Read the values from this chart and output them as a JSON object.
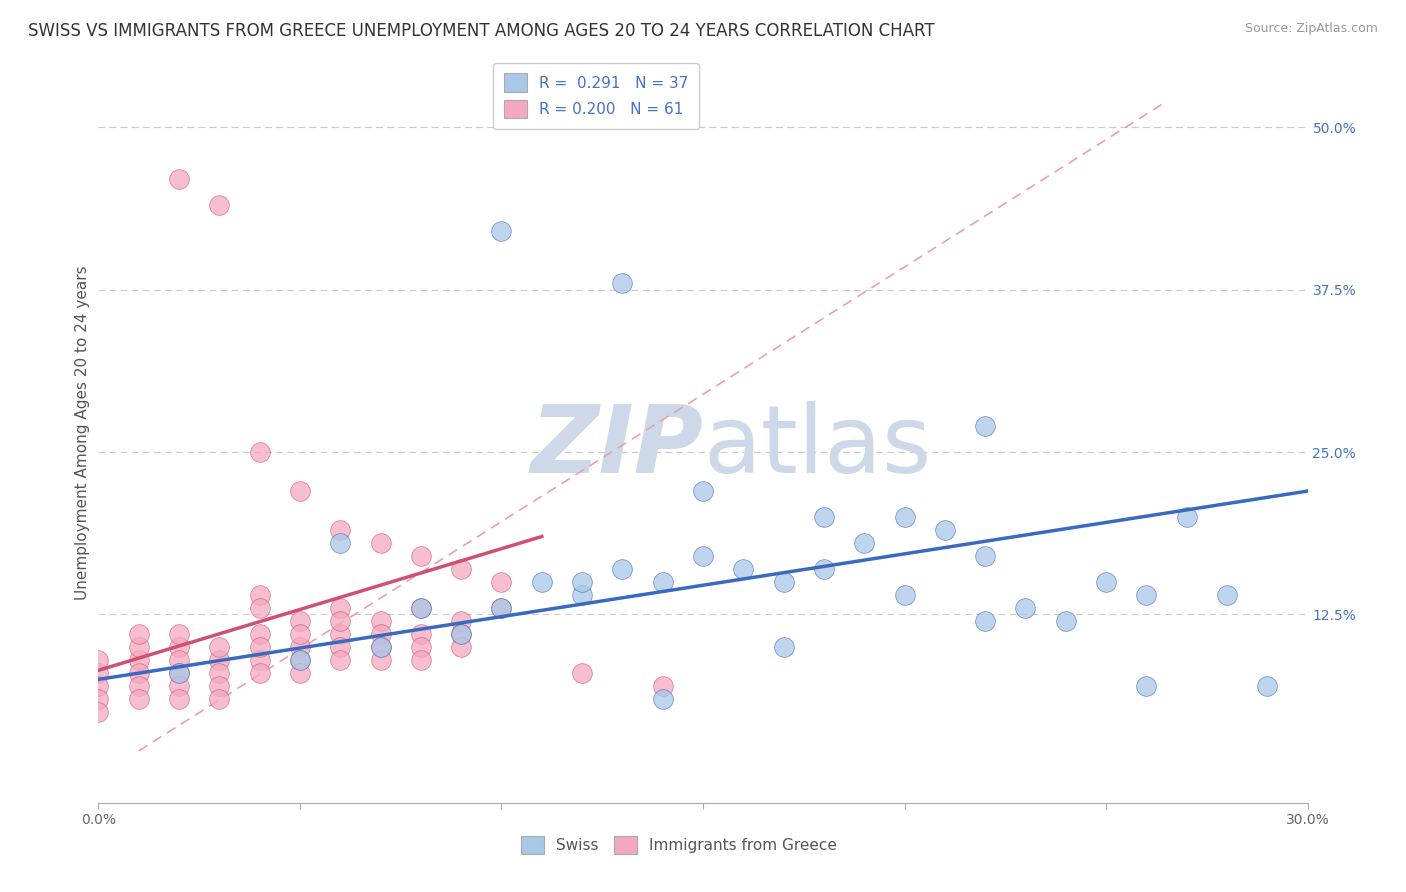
{
  "title": "SWISS VS IMMIGRANTS FROM GREECE UNEMPLOYMENT AMONG AGES 20 TO 24 YEARS CORRELATION CHART",
  "source": "Source: ZipAtlas.com",
  "ylabel": "Unemployment Among Ages 20 to 24 years",
  "xlim": [
    0.0,
    0.3
  ],
  "ylim": [
    -0.02,
    0.55
  ],
  "yticks_right": [
    0.125,
    0.25,
    0.375,
    0.5
  ],
  "yticklabels_right": [
    "12.5%",
    "25.0%",
    "37.5%",
    "50.0%"
  ],
  "legend_r_swiss": "0.291",
  "legend_n_swiss": "37",
  "legend_r_greece": "0.200",
  "legend_n_greece": "61",
  "swiss_color": "#a8c8e8",
  "greece_color": "#f4a8be",
  "swiss_line_color": "#3a6abf",
  "greece_line_color": "#d05070",
  "dash_line_color": "#e8a0b0",
  "background_color": "#ffffff",
  "watermark_color": "#cdd8e8",
  "title_fontsize": 12,
  "axis_label_fontsize": 11,
  "tick_fontsize": 10,
  "legend_fontsize": 11,
  "swiss_x": [
    0.02,
    0.05,
    0.07,
    0.09,
    0.1,
    0.11,
    0.12,
    0.13,
    0.14,
    0.15,
    0.16,
    0.17,
    0.18,
    0.19,
    0.2,
    0.21,
    0.22,
    0.23,
    0.24,
    0.25,
    0.26,
    0.27,
    0.28,
    0.1,
    0.13,
    0.15,
    0.18,
    0.2,
    0.22,
    0.06,
    0.08,
    0.12,
    0.17,
    0.22,
    0.26,
    0.29,
    0.14
  ],
  "swiss_y": [
    0.08,
    0.09,
    0.1,
    0.11,
    0.13,
    0.15,
    0.14,
    0.16,
    0.15,
    0.17,
    0.16,
    0.15,
    0.16,
    0.18,
    0.2,
    0.19,
    0.17,
    0.13,
    0.12,
    0.15,
    0.14,
    0.2,
    0.14,
    0.42,
    0.38,
    0.22,
    0.2,
    0.14,
    0.27,
    0.18,
    0.13,
    0.15,
    0.1,
    0.12,
    0.07,
    0.07,
    0.06
  ],
  "greece_x": [
    0.0,
    0.0,
    0.0,
    0.0,
    0.0,
    0.01,
    0.01,
    0.01,
    0.01,
    0.01,
    0.01,
    0.02,
    0.02,
    0.02,
    0.02,
    0.02,
    0.02,
    0.02,
    0.03,
    0.03,
    0.03,
    0.03,
    0.03,
    0.03,
    0.04,
    0.04,
    0.04,
    0.04,
    0.04,
    0.04,
    0.04,
    0.05,
    0.05,
    0.05,
    0.05,
    0.05,
    0.05,
    0.06,
    0.06,
    0.06,
    0.06,
    0.06,
    0.06,
    0.07,
    0.07,
    0.07,
    0.07,
    0.07,
    0.08,
    0.08,
    0.08,
    0.08,
    0.08,
    0.09,
    0.09,
    0.09,
    0.09,
    0.1,
    0.1,
    0.12,
    0.14
  ],
  "greece_y": [
    0.08,
    0.07,
    0.06,
    0.05,
    0.09,
    0.09,
    0.08,
    0.07,
    0.06,
    0.1,
    0.11,
    0.1,
    0.09,
    0.08,
    0.07,
    0.06,
    0.11,
    0.46,
    0.09,
    0.08,
    0.07,
    0.06,
    0.1,
    0.44,
    0.09,
    0.08,
    0.11,
    0.1,
    0.14,
    0.13,
    0.25,
    0.1,
    0.09,
    0.08,
    0.12,
    0.11,
    0.22,
    0.11,
    0.1,
    0.09,
    0.13,
    0.12,
    0.19,
    0.12,
    0.11,
    0.1,
    0.09,
    0.18,
    0.11,
    0.1,
    0.09,
    0.13,
    0.17,
    0.12,
    0.11,
    0.1,
    0.16,
    0.15,
    0.13,
    0.08,
    0.07
  ]
}
